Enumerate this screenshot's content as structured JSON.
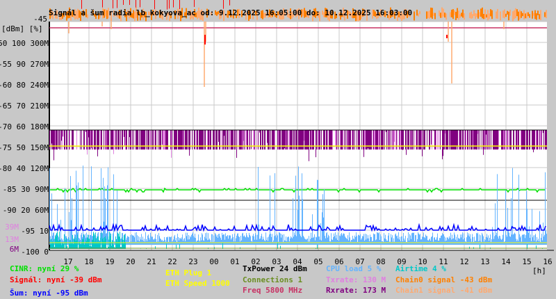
{
  "chart_data": {
    "type": "line",
    "title": "Signál a šum radia lb_kokyova_ac od: 9.12.2025 16:05:00 do: 10.12.2025 16:03:00",
    "ylabel": "[dBm] [%]",
    "xlabel": "[h]",
    "grid": true,
    "yaxis_dbm": {
      "range": [
        -100,
        -45
      ],
      "ticks": [
        "-45",
        "-50",
        "-55",
        "-60",
        "-65",
        "-70",
        "-75",
        "-80",
        "-85",
        "-90",
        "-95",
        "-100"
      ]
    },
    "yaxis_percent": {
      "range": [
        0,
        110
      ],
      "ticks": [
        "100",
        "90",
        "80",
        "70",
        "60",
        "50",
        "40",
        "30",
        "20",
        "10",
        "0"
      ]
    },
    "yaxis_rate": {
      "range": [
        0,
        300
      ],
      "unit": "M",
      "ticks": [
        "300M",
        "270M",
        "240M",
        "210M",
        "180M",
        "150M",
        "120M",
        "90M",
        "60M"
      ]
    },
    "extra_rate_labels": [
      {
        "text": "39M",
        "color": "#e080e0"
      },
      {
        "text": "13M",
        "color": "#e080e0"
      },
      {
        "text": "6M",
        "color": "#800080"
      }
    ],
    "x_ticks": [
      "17",
      "18",
      "19",
      "20",
      "21",
      "22",
      "23",
      "00",
      "01",
      "02",
      "03",
      "04",
      "05",
      "06",
      "07",
      "08",
      "09",
      "10",
      "11",
      "12",
      "13",
      "14",
      "15",
      "16"
    ],
    "series": [
      {
        "name": "CINR",
        "unit": "%",
        "level": 29,
        "color": "#00e000"
      },
      {
        "name": "Signál",
        "unit": "dBm",
        "level": -39,
        "color": "#ff0000"
      },
      {
        "name": "Šum",
        "unit": "dBm",
        "level": -95,
        "color": "#0000ff"
      },
      {
        "name": "ETH Plug",
        "level": 1,
        "color": "#ffff00"
      },
      {
        "name": "ETH Speed",
        "level": 1000,
        "color": "#ffff00"
      },
      {
        "name": "TxPower",
        "unit": "dBm",
        "level": 24,
        "color": "#000000"
      },
      {
        "name": "Connections",
        "level": 1,
        "color": "#6b8e23"
      },
      {
        "name": "Freq",
        "unit": "MHz",
        "level": 5800,
        "color": "#c83264"
      },
      {
        "name": "CPU load",
        "unit": "%",
        "level": 5,
        "color": "#64b4ff"
      },
      {
        "name": "Txrate",
        "unit": "M",
        "level": 130,
        "color": "#e080e0"
      },
      {
        "name": "Rxrate",
        "unit": "M",
        "level": 173,
        "color": "#800080"
      },
      {
        "name": "Airtime",
        "unit": "%",
        "level": 4,
        "color": "#00c8c8"
      },
      {
        "name": "Chain0 signal",
        "unit": "dBm",
        "level": -43,
        "color": "#ff8000"
      },
      {
        "name": "Chain1 signal",
        "unit": "dBm",
        "level": -41,
        "color": "#ffaa70"
      }
    ]
  },
  "legend": {
    "cinr": "CINR: nyní 29 %",
    "signal": "Signál: nyní -39 dBm",
    "noise": "Šum: nyní -95 dBm",
    "eth_plug": "ETH Plug 1",
    "eth_speed": "ETH Speed 1000",
    "txpower": "TxPower 24 dBm",
    "connections": "Connections 1",
    "freq": "Freq 5800 MHz",
    "cpu": "CPU load 5 %",
    "txrate": "Txrate: 130 M",
    "rxrate": "Rxrate: 173 M",
    "airtime": "Airtime 4 %",
    "chain0": "Chain0 signal -43 dBm",
    "chain1": "Chain1 signal -41 dBm"
  }
}
